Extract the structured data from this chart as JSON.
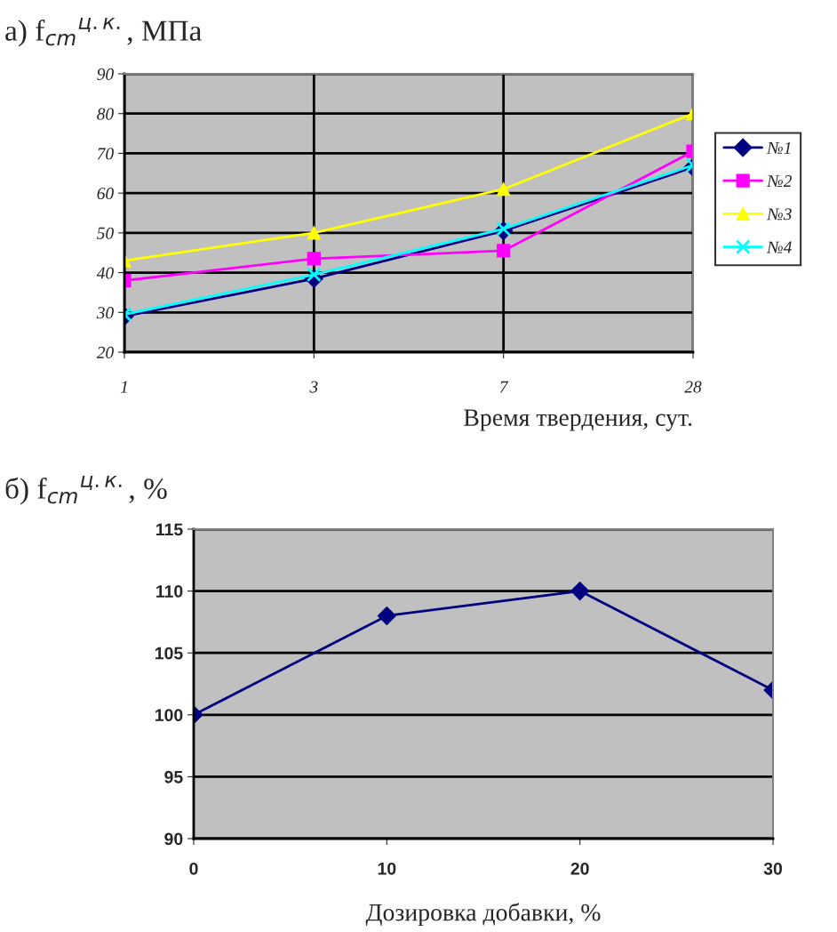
{
  "chart_data": [
    {
      "type": "line",
      "title": "а) f$_{cm}$$^{ц.к.}$, МПа",
      "xlabel": "Время твердения, сут.",
      "categories": [
        "1",
        "3",
        "7",
        "28"
      ],
      "ylim": [
        20,
        90
      ],
      "yticks": [
        20,
        30,
        40,
        50,
        60,
        70,
        80,
        90
      ],
      "grid": true,
      "legend": "right",
      "series": [
        {
          "name": "№1",
          "color": "#000080",
          "marker": "diamond",
          "values": [
            29,
            38.5,
            50.5,
            66.5
          ]
        },
        {
          "name": "№2",
          "color": "#ff00ff",
          "marker": "square",
          "values": [
            38,
            43.5,
            45.5,
            70.5
          ]
        },
        {
          "name": "№3",
          "color": "#ffff00",
          "marker": "triangle",
          "values": [
            43,
            50,
            61,
            80
          ]
        },
        {
          "name": "№4",
          "color": "#00ffff",
          "marker": "cross",
          "values": [
            29.5,
            39.5,
            51,
            67
          ]
        }
      ]
    },
    {
      "type": "line",
      "title": "б) f$_{cm}$$^{ц.к.}$, %",
      "xlabel": "Дозировка добавки, %",
      "x": [
        0,
        10,
        20,
        30
      ],
      "xlim": [
        0,
        30
      ],
      "xticks": [
        0,
        10,
        20,
        30
      ],
      "ylim": [
        90,
        115
      ],
      "yticks": [
        90,
        95,
        100,
        105,
        110,
        115
      ],
      "grid": "y",
      "legend": false,
      "marker": "diamond",
      "series": [
        {
          "color": "#000080",
          "values": [
            100,
            108,
            110,
            102
          ]
        }
      ]
    }
  ]
}
